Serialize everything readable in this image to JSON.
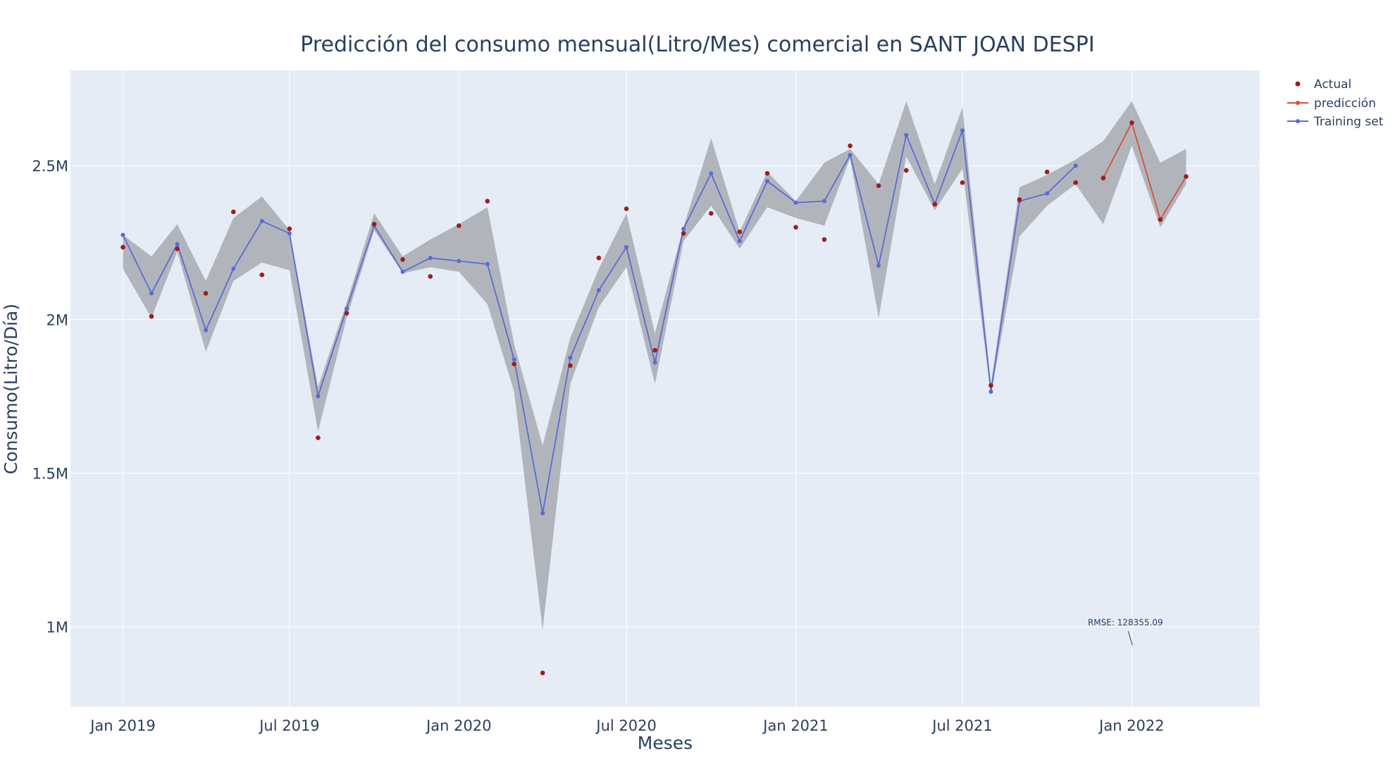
{
  "chart_data": {
    "type": "line",
    "title": "Predicción del consumo mensual(Litro/Mes) comercial en SANT JOAN DESPI",
    "xlabel": "Meses",
    "ylabel": "Consumo(Litro/Día)",
    "x_range": [
      "2018-11-05",
      "2022-05-20"
    ],
    "ylim": [
      740000,
      2810000
    ],
    "grid": true,
    "legend_position": "top-right",
    "x_ticks": [
      {
        "date": "2019-01-01",
        "label": "Jan 2019"
      },
      {
        "date": "2019-07-01",
        "label": "Jul 2019"
      },
      {
        "date": "2020-01-01",
        "label": "Jan 2020"
      },
      {
        "date": "2020-07-01",
        "label": "Jul 2020"
      },
      {
        "date": "2021-01-01",
        "label": "Jan 2021"
      },
      {
        "date": "2021-07-01",
        "label": "Jul 2021"
      },
      {
        "date": "2022-01-01",
        "label": "Jan 2022"
      }
    ],
    "y_ticks": [
      {
        "value": 1000000,
        "label": "1M"
      },
      {
        "value": 1500000,
        "label": "1.5M"
      },
      {
        "value": 2000000,
        "label": "2M"
      },
      {
        "value": 2500000,
        "label": "2.5M"
      }
    ],
    "colors": {
      "actual": "#a01c1c",
      "prediccion": "#d6503a",
      "training": "#5a6ad6",
      "band": "#a4a8ad",
      "plot_bg": "#e5ecf6",
      "grid": "#ffffff",
      "text": "#2a3f5f"
    },
    "series": [
      {
        "name": "Actual",
        "mode": "markers",
        "x": [
          "2019-01-01",
          "2019-02-01",
          "2019-03-01",
          "2019-04-01",
          "2019-05-01",
          "2019-06-01",
          "2019-07-01",
          "2019-08-01",
          "2019-09-01",
          "2019-10-01",
          "2019-11-01",
          "2019-12-01",
          "2020-01-01",
          "2020-02-01",
          "2020-03-01",
          "2020-04-01",
          "2020-05-01",
          "2020-06-01",
          "2020-07-01",
          "2020-08-01",
          "2020-09-01",
          "2020-10-01",
          "2020-11-01",
          "2020-12-01",
          "2021-01-01",
          "2021-02-01",
          "2021-03-01",
          "2021-04-01",
          "2021-05-01",
          "2021-06-01",
          "2021-07-01",
          "2021-08-01",
          "2021-09-01",
          "2021-10-01",
          "2021-11-01",
          "2021-12-01",
          "2022-01-01",
          "2022-02-01",
          "2022-03-01"
        ],
        "y": [
          2235000,
          2010000,
          2230000,
          2085000,
          2350000,
          2145000,
          2295000,
          1615000,
          2020000,
          2310000,
          2195000,
          2140000,
          2305000,
          2385000,
          1855000,
          850000,
          1850000,
          2200000,
          2360000,
          1900000,
          2280000,
          2345000,
          2285000,
          2475000,
          2300000,
          2260000,
          2565000,
          2435000,
          2485000,
          2375000,
          2445000,
          1785000,
          2390000,
          2480000,
          2445000,
          2460000,
          2640000,
          2325000,
          2465000
        ]
      },
      {
        "name": "predicción",
        "mode": "lines+markers",
        "x": [
          "2021-12-01",
          "2022-01-01",
          "2022-02-01",
          "2022-03-01"
        ],
        "y": [
          2460000,
          2640000,
          2325000,
          2465000
        ]
      },
      {
        "name": "Training set",
        "mode": "lines+markers",
        "x": [
          "2019-01-01",
          "2019-02-01",
          "2019-03-01",
          "2019-04-01",
          "2019-05-01",
          "2019-06-01",
          "2019-07-01",
          "2019-08-01",
          "2019-09-01",
          "2019-10-01",
          "2019-11-01",
          "2019-12-01",
          "2020-01-01",
          "2020-02-01",
          "2020-03-01",
          "2020-04-01",
          "2020-05-01",
          "2020-06-01",
          "2020-07-01",
          "2020-08-01",
          "2020-09-01",
          "2020-10-01",
          "2020-11-01",
          "2020-12-01",
          "2021-01-01",
          "2021-02-01",
          "2021-03-01",
          "2021-04-01",
          "2021-05-01",
          "2021-06-01",
          "2021-07-01",
          "2021-08-01",
          "2021-09-01",
          "2021-10-01",
          "2021-11-01"
        ],
        "y": [
          2275000,
          2085000,
          2245000,
          1965000,
          2165000,
          2320000,
          2280000,
          1750000,
          2035000,
          2305000,
          2155000,
          2200000,
          2190000,
          2180000,
          1870000,
          1370000,
          1875000,
          2095000,
          2235000,
          1860000,
          2295000,
          2475000,
          2255000,
          2450000,
          2380000,
          2385000,
          2535000,
          2175000,
          2600000,
          2375000,
          2615000,
          1765000,
          2385000,
          2410000,
          2500000
        ]
      }
    ],
    "band": {
      "x": [
        "2019-01-01",
        "2019-02-01",
        "2019-03-01",
        "2019-04-01",
        "2019-05-01",
        "2019-06-01",
        "2019-07-01",
        "2019-08-01",
        "2019-09-01",
        "2019-10-01",
        "2019-11-01",
        "2019-12-01",
        "2020-01-01",
        "2020-02-01",
        "2020-03-01",
        "2020-04-01",
        "2020-05-01",
        "2020-06-01",
        "2020-07-01",
        "2020-08-01",
        "2020-09-01",
        "2020-10-01",
        "2020-11-01",
        "2020-12-01",
        "2021-01-01",
        "2021-02-01",
        "2021-03-01",
        "2021-04-01",
        "2021-05-01",
        "2021-06-01",
        "2021-07-01",
        "2021-08-01",
        "2021-09-01",
        "2021-10-01",
        "2021-11-01",
        "2021-12-01",
        "2022-01-01",
        "2022-02-01",
        "2022-03-01"
      ],
      "upper": [
        2275000,
        2205000,
        2310000,
        2125000,
        2330000,
        2400000,
        2290000,
        1780000,
        2055000,
        2345000,
        2205000,
        2260000,
        2310000,
        2365000,
        1920000,
        1590000,
        1940000,
        2165000,
        2345000,
        1955000,
        2300000,
        2590000,
        2285000,
        2480000,
        2385000,
        2510000,
        2555000,
        2440000,
        2710000,
        2440000,
        2690000,
        1790000,
        2430000,
        2470000,
        2520000,
        2580000,
        2710000,
        2510000,
        2555000
      ],
      "lower": [
        2165000,
        2005000,
        2220000,
        1895000,
        2125000,
        2185000,
        2160000,
        1635000,
        2005000,
        2290000,
        2150000,
        2170000,
        2155000,
        2050000,
        1765000,
        990000,
        1790000,
        2040000,
        2170000,
        1790000,
        2255000,
        2370000,
        2230000,
        2365000,
        2330000,
        2305000,
        2525000,
        2005000,
        2530000,
        2355000,
        2490000,
        1755000,
        2270000,
        2370000,
        2440000,
        2310000,
        2565000,
        2300000,
        2440000
      ]
    },
    "annotations": [
      {
        "text": "RMSE: 128355.09",
        "x": "2021-12-25",
        "y": 1000000
      }
    ]
  },
  "legend": {
    "items": [
      "Actual",
      "predicción",
      "Training set"
    ]
  }
}
